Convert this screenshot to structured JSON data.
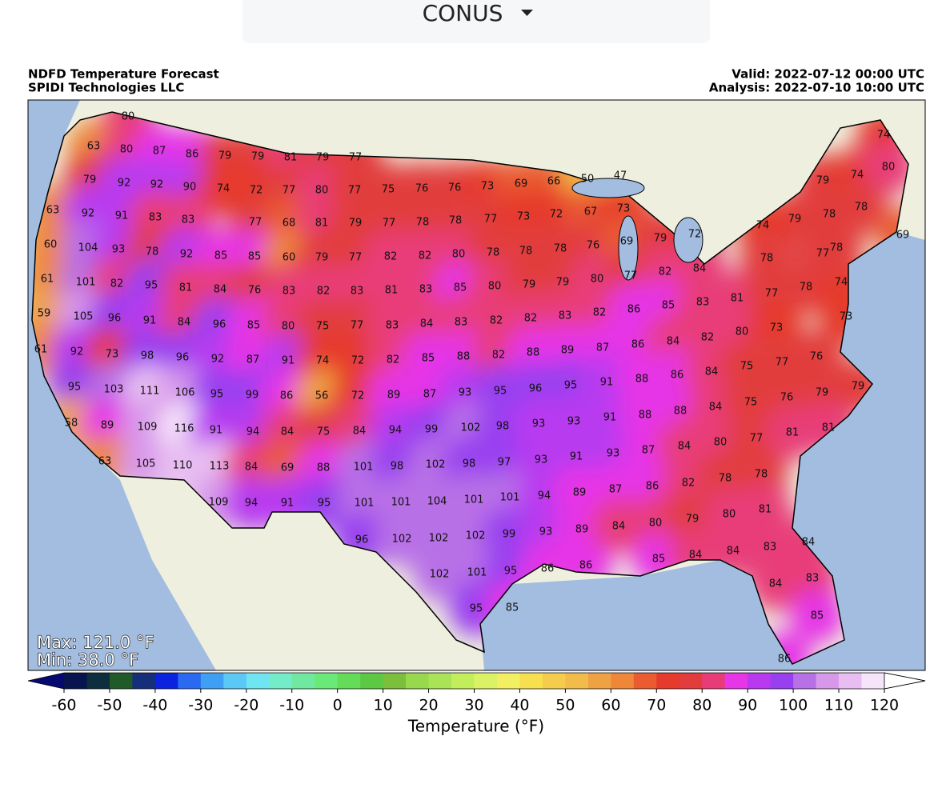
{
  "dropdown": {
    "label": "CONUS"
  },
  "header": {
    "title": "NDFD Temperature Forecast",
    "org": "SPIDI Technologies LLC",
    "valid": "Valid: 2022-07-12 00:00 UTC",
    "analysis": "Analysis: 2022-07-10 10:00 UTC"
  },
  "map": {
    "max": "Max: 121.0 °F",
    "min": "Min: 38.0 °F",
    "stations": [
      80,
      63,
      80,
      87,
      86,
      79,
      79,
      81,
      79,
      77,
      79,
      92,
      92,
      90,
      74,
      72,
      77,
      80,
      77,
      75,
      76,
      76,
      73,
      69,
      66,
      50,
      47,
      63,
      92,
      91,
      83,
      83,
      77,
      68,
      81,
      79,
      77,
      78,
      78,
      77,
      73,
      72,
      67,
      73,
      60,
      104,
      93,
      78,
      92,
      85,
      85,
      60,
      79,
      77,
      82,
      82,
      80,
      78,
      78,
      78,
      76,
      69,
      79,
      72,
      61,
      101,
      82,
      95,
      81,
      84,
      76,
      83,
      82,
      83,
      81,
      83,
      85,
      80,
      79,
      79,
      80,
      77,
      82,
      84,
      59,
      105,
      96,
      91,
      84,
      96,
      85,
      80,
      75,
      77,
      83,
      84,
      83,
      82,
      82,
      83,
      82,
      86,
      85,
      83,
      81,
      77,
      78,
      61,
      92,
      73,
      98,
      96,
      92,
      87,
      91,
      74,
      72,
      82,
      85,
      88,
      82,
      88,
      89,
      87,
      86,
      84,
      82,
      80,
      73,
      74,
      73,
      95,
      103,
      111,
      106,
      95,
      99,
      86,
      56,
      72,
      89,
      87,
      93,
      95,
      96,
      95,
      91,
      88,
      86,
      84,
      75,
      77,
      76,
      79,
      58,
      89,
      109,
      116,
      91,
      94,
      84,
      75,
      84,
      94,
      99,
      102,
      98,
      93,
      93,
      91,
      88,
      88,
      84,
      75,
      76,
      79,
      81,
      63,
      105,
      110,
      113,
      84,
      69,
      88,
      101,
      98,
      102,
      98,
      97,
      93,
      91,
      93,
      87,
      84,
      80,
      77,
      81,
      109,
      94,
      91,
      95,
      101,
      101,
      104,
      101,
      101,
      94,
      89,
      87,
      86,
      82,
      78,
      78,
      96,
      102,
      102,
      102,
      99,
      93,
      89,
      84,
      80,
      79,
      80,
      81,
      102,
      101,
      95,
      86,
      86,
      85,
      84,
      84,
      83,
      84,
      95,
      85,
      84,
      83,
      85,
      86,
      79,
      74,
      74,
      80,
      78,
      79,
      74,
      78,
      69,
      78,
      77,
      78
    ]
  },
  "colorbar": {
    "label": "Temperature (°F)",
    "ticks": [
      -60,
      -50,
      -40,
      -30,
      -20,
      -10,
      0,
      10,
      20,
      30,
      40,
      50,
      60,
      70,
      80,
      90,
      100,
      110,
      120
    ],
    "under": "#050a70",
    "over": "#ffffff",
    "colors": [
      "#071450",
      "#0d2e3c",
      "#1f5a28",
      "#162f7a",
      "#0a23e0",
      "#2a6af0",
      "#3f9ff2",
      "#5cc8f6",
      "#6ee5f0",
      "#74ecc8",
      "#70e8a0",
      "#6ae878",
      "#64dc58",
      "#5cc844",
      "#7cbf3c",
      "#98d84c",
      "#a8e456",
      "#c2ee5c",
      "#dcf266",
      "#f2f062",
      "#f6e050",
      "#f5cc4c",
      "#f2bc4a",
      "#eea244",
      "#ee8838",
      "#ea5c30",
      "#e63a2c",
      "#e23c3c",
      "#e83c78",
      "#e636e6",
      "#b83af0",
      "#9840f0",
      "#b870e6",
      "#d898ea",
      "#e8bef2",
      "#f6e4fa"
    ]
  }
}
